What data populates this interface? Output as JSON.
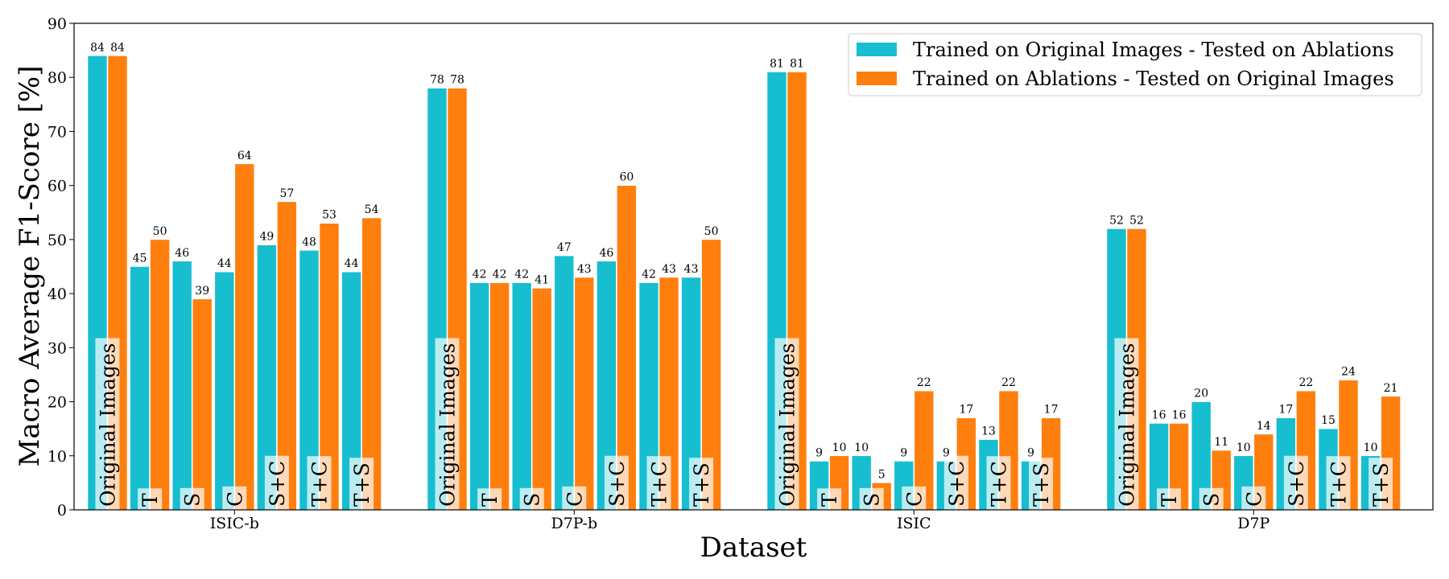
{
  "chart_data": {
    "type": "bar",
    "title": "",
    "xlabel": "Dataset",
    "ylabel": "Macro Average F1-Score [%]",
    "ylim": [
      0,
      90
    ],
    "yticks": [
      "0",
      "10",
      "20",
      "30",
      "40",
      "50",
      "60",
      "70",
      "80",
      "90"
    ],
    "categories": [
      "ISIC-b",
      "D7P-b",
      "ISIC",
      "D7P"
    ],
    "conditions": [
      "Original Images",
      "T",
      "S",
      "C",
      "S+C",
      "T+C",
      "T+S"
    ],
    "series": [
      {
        "name": "Trained on Original Images - Tested on Ablations",
        "color": "#17becf",
        "values": [
          [
            84,
            45,
            46,
            44,
            49,
            48,
            44
          ],
          [
            78,
            42,
            42,
            47,
            46,
            42,
            43
          ],
          [
            81,
            9,
            10,
            9,
            9,
            13,
            9
          ],
          [
            52,
            16,
            20,
            10,
            17,
            15,
            10
          ]
        ],
        "labels": [
          [
            "84",
            "45",
            "46",
            "44",
            "49",
            "48",
            "44"
          ],
          [
            "78",
            "42",
            "42",
            "47",
            "46",
            "42",
            "43"
          ],
          [
            "81",
            "9",
            "10",
            "9",
            "9",
            "13",
            "9"
          ],
          [
            "52",
            "16",
            "20",
            "10",
            "17",
            "15",
            "10"
          ]
        ]
      },
      {
        "name": "Trained on Ablations - Tested on Original Images",
        "color": "#ff7f0e",
        "values": [
          [
            84,
            50,
            39,
            64,
            57,
            53,
            54
          ],
          [
            78,
            42,
            41,
            43,
            60,
            43,
            50
          ],
          [
            81,
            10,
            5,
            22,
            17,
            22,
            17
          ],
          [
            52,
            16,
            11,
            14,
            22,
            24,
            21
          ]
        ],
        "labels": [
          [
            "84",
            "50",
            "39",
            "64",
            "57",
            "53",
            "54"
          ],
          [
            "78",
            "42",
            "41",
            "43",
            "60",
            "43",
            "50"
          ],
          [
            "81",
            "10",
            "5",
            "22",
            "17",
            "22",
            "17"
          ],
          [
            "52",
            "16",
            "11",
            "14",
            "22",
            "24",
            "21"
          ]
        ]
      }
    ],
    "legend_position": "top-right",
    "grid": false
  }
}
